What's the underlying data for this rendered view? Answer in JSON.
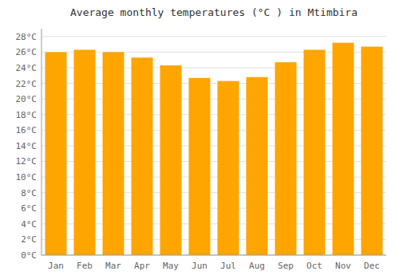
{
  "chart_data": {
    "type": "bar",
    "title": "Average monthly temperatures (°C ) in Mtimbira",
    "categories": [
      "Jan",
      "Feb",
      "Mar",
      "Apr",
      "May",
      "Jun",
      "Jul",
      "Aug",
      "Sep",
      "Oct",
      "Nov",
      "Dec"
    ],
    "values": [
      26.0,
      26.3,
      26.0,
      25.3,
      24.3,
      22.7,
      22.3,
      22.8,
      24.7,
      26.3,
      27.2,
      26.7
    ],
    "color": "#FFA500",
    "ylim": [
      0,
      29
    ],
    "yticks": [
      {
        "value": 0,
        "label": "0°C"
      },
      {
        "value": 2,
        "label": "2°C"
      },
      {
        "value": 4,
        "label": "4°C"
      },
      {
        "value": 6,
        "label": "6°C"
      },
      {
        "value": 8,
        "label": "8°C"
      },
      {
        "value": 10,
        "label": "10°C"
      },
      {
        "value": 12,
        "label": "12°C"
      },
      {
        "value": 14,
        "label": "14°C"
      },
      {
        "value": 16,
        "label": "16°C"
      },
      {
        "value": 18,
        "label": "18°C"
      },
      {
        "value": 20,
        "label": "20°C"
      },
      {
        "value": 22,
        "label": "22°C"
      },
      {
        "value": 24,
        "label": "24°C"
      },
      {
        "value": 26,
        "label": "26°C"
      },
      {
        "value": 28,
        "label": "28°C"
      }
    ],
    "grid": true
  }
}
